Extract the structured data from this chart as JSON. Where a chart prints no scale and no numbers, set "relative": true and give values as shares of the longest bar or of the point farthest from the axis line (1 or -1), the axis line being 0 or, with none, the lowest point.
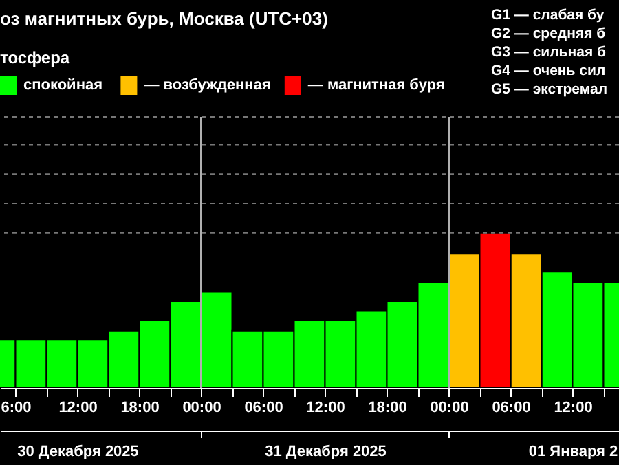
{
  "chart_data": {
    "type": "bar",
    "title": "оз магнитных бурь, Москва (UTC+03)",
    "subtitle": "тосфера",
    "relative": true,
    "x": [
      "2025-12-30T04:30",
      "2025-12-30T07:30",
      "2025-12-30T10:30",
      "2025-12-30T13:30",
      "2025-12-30T16:30",
      "2025-12-30T19:30",
      "2025-12-30T22:30",
      "2025-12-31T01:30",
      "2025-12-31T04:30",
      "2025-12-31T07:30",
      "2025-12-31T10:30",
      "2025-12-31T13:30",
      "2025-12-31T16:30",
      "2025-12-31T19:30",
      "2025-12-31T22:30",
      "2026-01-01T01:30",
      "2026-01-01T04:30",
      "2026-01-01T07:30",
      "2026-01-01T10:30",
      "2026-01-01T13:30",
      "2026-01-01T16:30"
    ],
    "series": [
      {
        "name": "спокойная",
        "color": "#00ff00",
        "values": [
          0.31,
          0.31,
          0.31,
          0.31,
          0.37,
          0.44,
          0.56,
          0.62,
          0.37,
          0.37,
          0.44,
          0.44,
          0.5,
          0.56,
          0.68,
          null,
          null,
          null,
          0.75,
          0.68,
          0.68
        ]
      },
      {
        "name": "— возбужденная",
        "color": "#ffc000",
        "values": [
          null,
          null,
          null,
          null,
          null,
          null,
          null,
          null,
          null,
          null,
          null,
          null,
          null,
          null,
          null,
          0.87,
          null,
          0.87,
          null,
          null,
          null
        ]
      },
      {
        "name": "— магнитная буря",
        "color": "#ff0000",
        "values": [
          null,
          null,
          null,
          null,
          null,
          null,
          null,
          null,
          null,
          null,
          null,
          null,
          null,
          null,
          null,
          null,
          1,
          null,
          null,
          null,
          null
        ]
      }
    ],
    "xlim": [
      "2025-12-30T04:30",
      "2026-01-01T16:30"
    ],
    "xticks": [
      {
        "value": "2025-12-30T06:00",
        "label": "6:00"
      },
      {
        "value": "2025-12-30T09:00",
        "label": null
      },
      {
        "value": "2025-12-30T12:00",
        "label": "12:00"
      },
      {
        "value": "2025-12-30T15:00",
        "label": null
      },
      {
        "value": "2025-12-30T18:00",
        "label": "18:00"
      },
      {
        "value": "2025-12-30T21:00",
        "label": null
      },
      {
        "value": "2025-12-31T00:00",
        "label": "00:00"
      },
      {
        "value": "2025-12-31T03:00",
        "label": null
      },
      {
        "value": "2025-12-31T06:00",
        "label": "06:00"
      },
      {
        "value": "2025-12-31T09:00",
        "label": null
      },
      {
        "value": "2025-12-31T12:00",
        "label": "12:00"
      },
      {
        "value": "2025-12-31T15:00",
        "label": null
      },
      {
        "value": "2025-12-31T18:00",
        "label": "18:00"
      },
      {
        "value": "2025-12-31T21:00",
        "label": null
      },
      {
        "value": "2026-01-01T00:00",
        "label": "00:00"
      },
      {
        "value": "2026-01-01T03:00",
        "label": null
      },
      {
        "value": "2026-01-01T06:00",
        "label": "06:00"
      },
      {
        "value": "2026-01-01T09:00",
        "label": null
      },
      {
        "value": "2026-01-01T12:00",
        "label": "12:00"
      },
      {
        "value": "2026-01-01T15:00",
        "label": null
      }
    ],
    "x2lim": [
      "2025-12-30T04:30",
      "2026-01-01T16:30"
    ],
    "x2ticks": [
      {
        "value": "2025-12-30T12:00",
        "label": "30 Декабря 2025"
      },
      {
        "value": "2025-12-31T00:00",
        "label": null
      },
      {
        "value": "2025-12-31T12:00",
        "label": "31 Декабря 2025"
      },
      {
        "value": "2026-01-01T00:00",
        "label": null
      },
      {
        "value": "2026-01-01T12:00",
        "label": "01 Января 2"
      }
    ],
    "tick_labels": "x",
    "legend": "top left",
    "ref_lines": [
      {
        "axis": "x",
        "value": "2025-12-31T00:00",
        "color": "#b0b0b0"
      },
      {
        "axis": "x",
        "value": "2026-01-01T00:00",
        "color": "#b0b0b0"
      },
      {
        "axis": "y",
        "value": 1.0,
        "color": "#777777",
        "line_style": "dashed"
      },
      {
        "axis": "y",
        "value": 1.19,
        "color": "#777777",
        "line_style": "dashed"
      },
      {
        "axis": "y",
        "value": 1.38,
        "color": "#777777",
        "line_style": "dashed"
      },
      {
        "axis": "y",
        "value": 1.57,
        "color": "#777777",
        "line_style": "dashed"
      },
      {
        "axis": "y",
        "value": 1.75,
        "color": "#777777",
        "line_style": "dashed"
      }
    ],
    "annotations": [
      "G1 — слабая бу",
      "G2 — средняя б",
      "G3 — сильная б",
      "G4 — очень сил",
      "G5 — экстремал"
    ]
  }
}
